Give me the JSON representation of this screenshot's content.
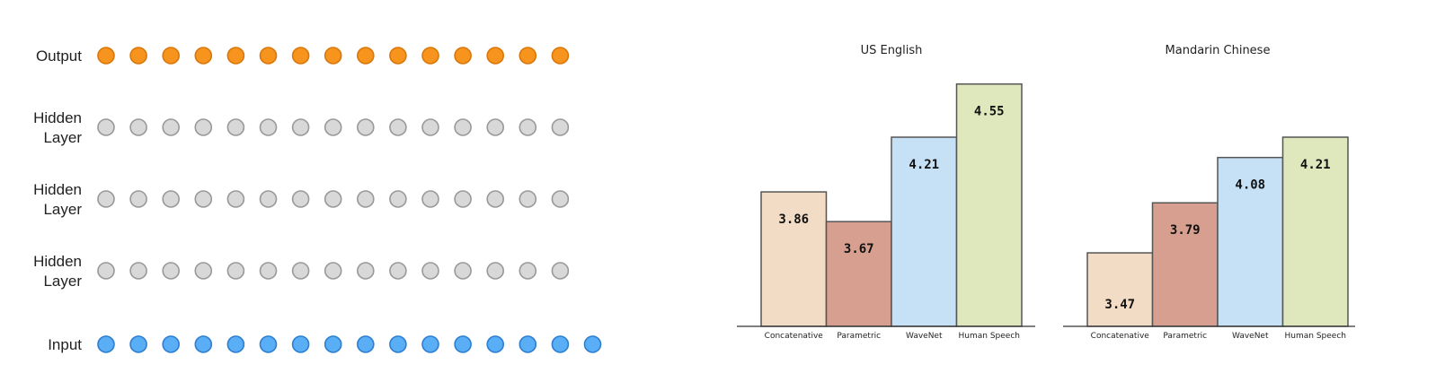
{
  "network": {
    "layers": [
      {
        "label_lines": [
          "Output"
        ],
        "nodes": 15,
        "color": "#f7941d",
        "stroke": "#d9770b"
      },
      {
        "label_lines": [
          "Hidden",
          "Layer"
        ],
        "nodes": 15,
        "color": "#d8d8d8",
        "stroke": "#999999"
      },
      {
        "label_lines": [
          "Hidden",
          "Layer"
        ],
        "nodes": 15,
        "color": "#d8d8d8",
        "stroke": "#999999"
      },
      {
        "label_lines": [
          "Hidden",
          "Layer"
        ],
        "nodes": 15,
        "color": "#d8d8d8",
        "stroke": "#999999"
      },
      {
        "label_lines": [
          "Input"
        ],
        "nodes": 16,
        "color": "#5aaef5",
        "stroke": "#2e7fd0"
      }
    ]
  },
  "chart_data": [
    {
      "type": "bar",
      "title": "US English",
      "categories": [
        "Concatenative",
        "Parametric",
        "WaveNet",
        "Human Speech"
      ],
      "values": [
        3.86,
        3.67,
        4.21,
        4.55
      ],
      "value_labels": [
        "3.86",
        "3.67",
        "4.21",
        "4.55"
      ],
      "colors": [
        "#f3dcc5",
        "#d69f8f",
        "#c6e0f6",
        "#dfe7bd"
      ],
      "ylim": [
        3.0,
        4.6
      ],
      "grid": false,
      "xlabel": "",
      "ylabel": ""
    },
    {
      "type": "bar",
      "title": "Mandarin Chinese",
      "categories": [
        "Concatenative",
        "Parametric",
        "WaveNet",
        "Human Speech"
      ],
      "values": [
        3.47,
        3.79,
        4.08,
        4.21
      ],
      "value_labels": [
        "3.47",
        "3.79",
        "4.08",
        "4.21"
      ],
      "colors": [
        "#f3dcc5",
        "#d69f8f",
        "#c6e0f6",
        "#dfe7bd"
      ],
      "ylim": [
        3.0,
        4.6
      ],
      "grid": false,
      "xlabel": "",
      "ylabel": ""
    }
  ]
}
